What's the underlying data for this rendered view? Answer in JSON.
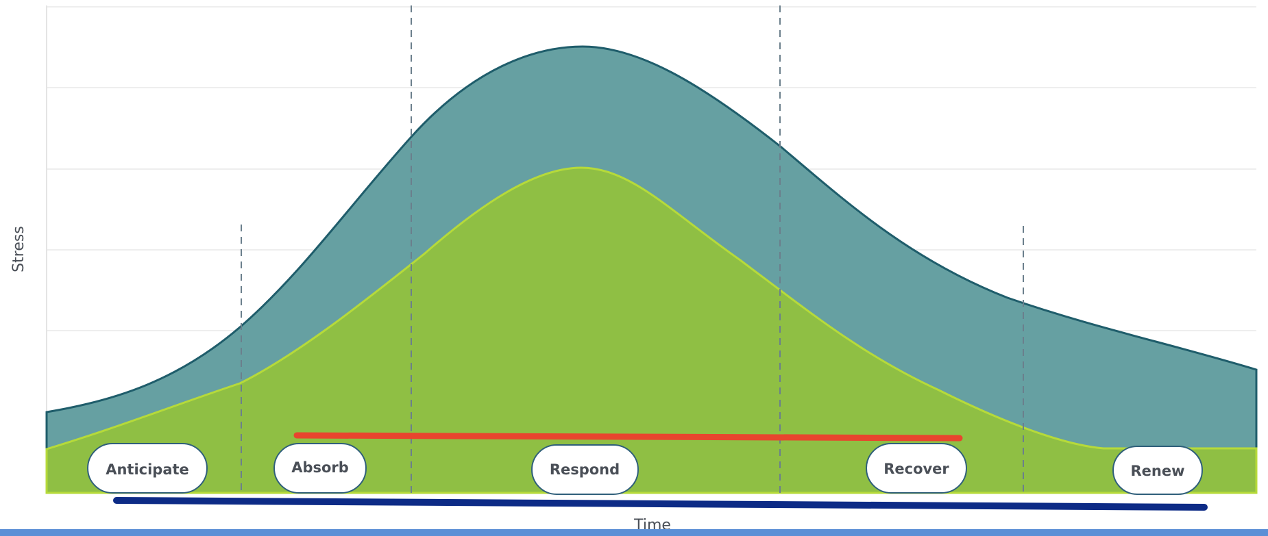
{
  "diagram": {
    "x_axis_label": "Time",
    "y_axis_label": "Stress",
    "phases": [
      {
        "id": "anticipate",
        "label": "Anticipate"
      },
      {
        "id": "absorb",
        "label": "Absorb"
      },
      {
        "id": "respond",
        "label": "Respond"
      },
      {
        "id": "recover",
        "label": "Recover"
      },
      {
        "id": "renew",
        "label": "Renew"
      }
    ],
    "colors": {
      "outer_curve": "#66a0a2",
      "outer_curve_stroke": "#1f5d6b",
      "inner_curve": "#8fbf44",
      "inner_curve_stroke": "#b6da3a",
      "red_bar": "#e8452e",
      "blue_bar": "#0d2b86",
      "bottom_strip": "#5b8fd6"
    }
  }
}
